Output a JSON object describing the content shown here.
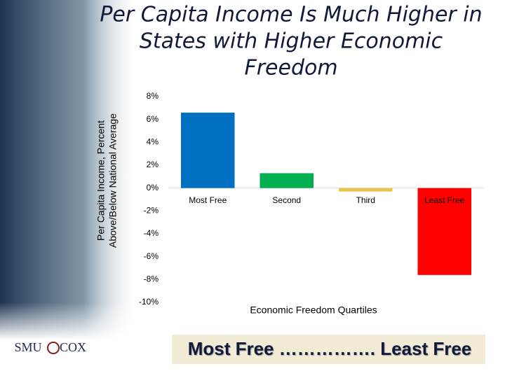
{
  "chart_data": {
    "type": "bar",
    "title": [
      "Per Capita Income Is Much Higher in",
      "States with Higher Economic",
      "Freedom"
    ],
    "y_label": [
      "Per Capita Income, Percent",
      "Above/Below National Average"
    ],
    "x_label": "Economic Freedom Quartiles",
    "categories": [
      "Most Free",
      "Second",
      "Third",
      "Least Free"
    ],
    "values": [
      6.6,
      1.3,
      -0.3,
      -7.6
    ],
    "colors": [
      "#0070c0",
      "#00b050",
      "#e8c547",
      "#ff0000"
    ],
    "ylim": [
      -10,
      8
    ],
    "yticks": [
      {
        "value": -10,
        "label": "-10%"
      },
      {
        "value": -8,
        "label": "-8%"
      },
      {
        "value": -6,
        "label": "-6%"
      },
      {
        "value": -4,
        "label": "-4%"
      },
      {
        "value": -2,
        "label": "-2%"
      },
      {
        "value": 0,
        "label": "0%"
      },
      {
        "value": 2,
        "label": "2%"
      },
      {
        "value": 4,
        "label": "4%"
      },
      {
        "value": 6,
        "label": "6%"
      },
      {
        "value": 8,
        "label": "8%"
      }
    ],
    "grid": false
  },
  "slide": {
    "banner": "Most Free ……………. Least Free",
    "logo_left": "SMU",
    "logo_right": "COX"
  }
}
